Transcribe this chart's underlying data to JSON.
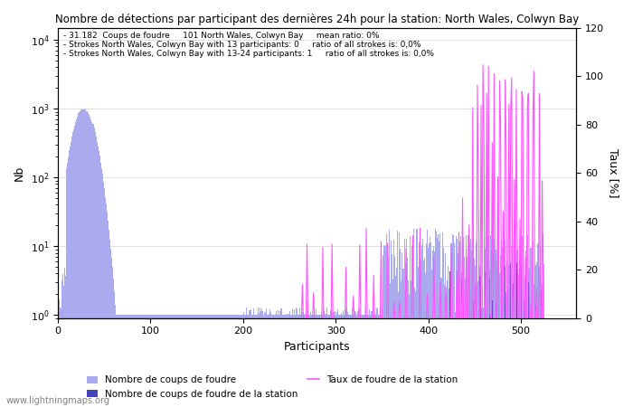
{
  "title": "Nombre de détections par participant des dernières 24h pour la station: North Wales, Colwyn Bay",
  "annotation_line1": "- 31.182  Coups de foudre     101 North Wales, Colwyn Bay     mean ratio: 0%",
  "annotation_line2": "- Strokes North Wales, Colwyn Bay with 13 participants: 0     ratio of all strokes is: 0,0%",
  "annotation_line3": "- Strokes North Wales, Colwyn Bay with 13-24 participants: 1     ratio of all strokes is: 0,0%",
  "xlabel": "Participants",
  "ylabel_left": "Nb",
  "ylabel_right": "Taux [%]",
  "watermark": "www.lightningmaps.org",
  "legend_bar1": "Nombre de coups de foudre",
  "legend_bar2": "Nombre de coups de foudre de la station",
  "legend_line": "Taux de foudre de la station",
  "bar_color_light": "#aaaaee",
  "bar_color_dark": "#4444bb",
  "line_color": "#ff55ff",
  "xlim": [
    0,
    560
  ],
  "ylim_log_min": 0.9,
  "ylim_log_max": 15000,
  "ylim_right": [
    0,
    120
  ],
  "yticks_right": [
    0,
    20,
    40,
    60,
    80,
    100,
    120
  ],
  "num_participants": 525
}
